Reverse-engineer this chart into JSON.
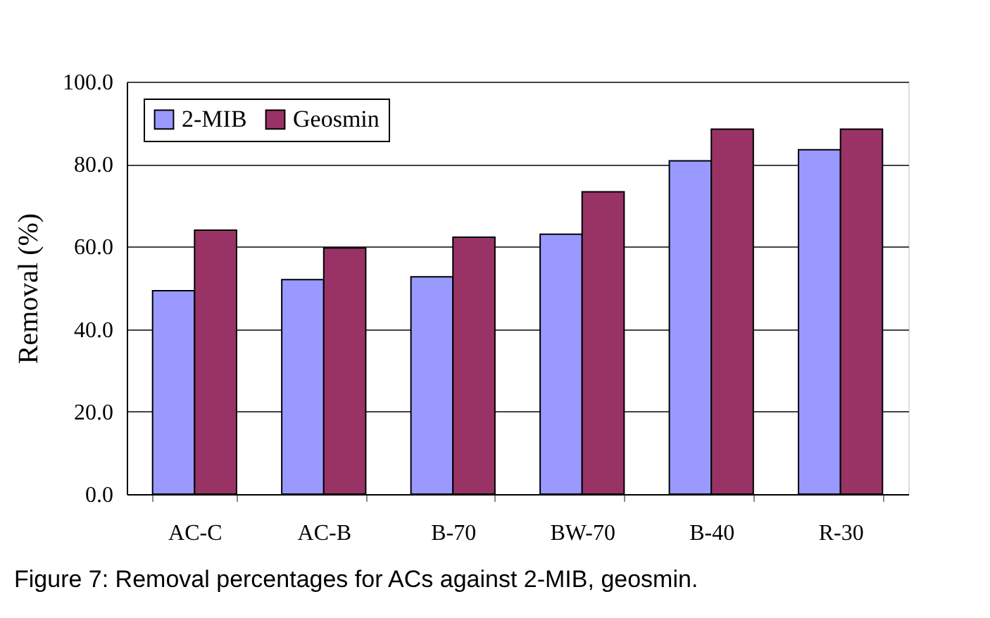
{
  "chart_data": {
    "type": "bar",
    "ylabel": "Removal (%)",
    "categories": [
      "AC-C",
      "AC-B",
      "B-70",
      "BW-70",
      "B-40",
      "R-30"
    ],
    "series": [
      {
        "name": "2-MIB",
        "color": "#9999ff",
        "values": [
          49.3,
          52.0,
          52.7,
          63.0,
          80.8,
          83.5
        ]
      },
      {
        "name": "Geosmin",
        "color": "#993366",
        "values": [
          64.0,
          59.7,
          62.3,
          73.3,
          88.5,
          88.5
        ]
      }
    ],
    "ylim": [
      0,
      100
    ],
    "yticks": [
      {
        "value": 0,
        "label": "0.0"
      },
      {
        "value": 20,
        "label": "20.0"
      },
      {
        "value": 40,
        "label": "40.0"
      },
      {
        "value": 60,
        "label": "60.0"
      },
      {
        "value": 80,
        "label": "80.0"
      },
      {
        "value": 100,
        "label": "100.0"
      }
    ],
    "grid": "y",
    "legend": "top left",
    "annotations": [
      "Figure 7:  Removal percentages for ACs against 2-MIB, geosmin."
    ]
  }
}
